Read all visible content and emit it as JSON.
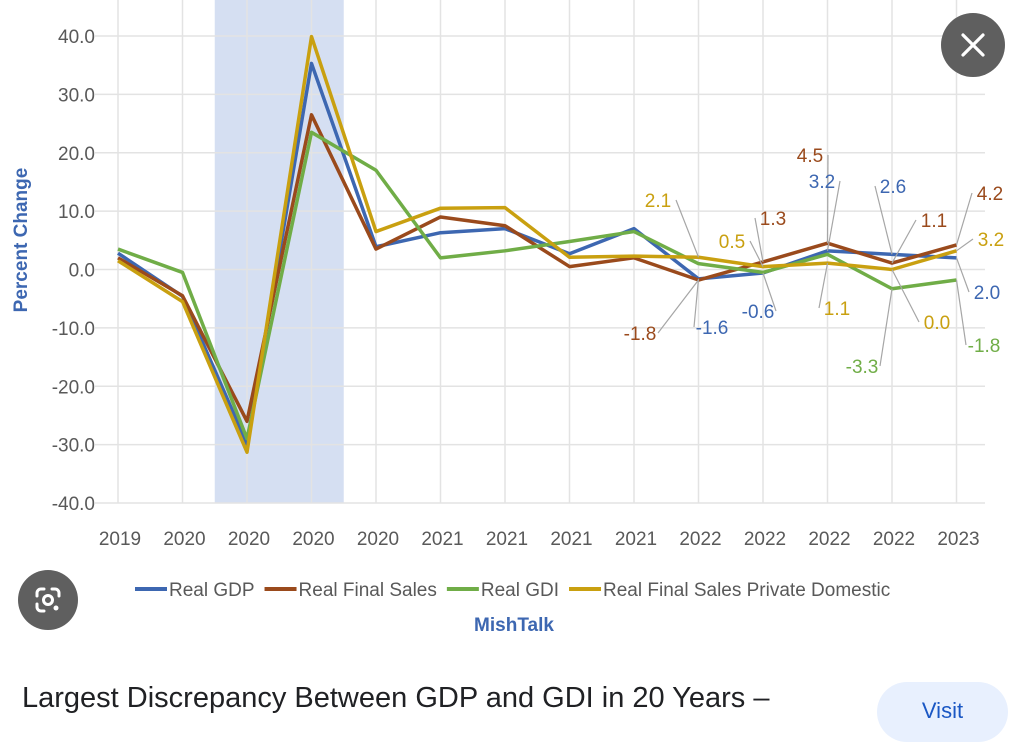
{
  "chart_data": {
    "type": "line",
    "ylabel": "Percent Change",
    "xlabel": "",
    "ylim": [
      -40,
      40
    ],
    "yticks": [
      "40.0",
      "30.0",
      "20.0",
      "10.0",
      "0.0",
      "-10.0",
      "-20.0",
      "-30.0",
      "-40.0"
    ],
    "categories": [
      "2019",
      "2020",
      "2020",
      "2020",
      "2020",
      "2021",
      "2021",
      "2021",
      "2021",
      "2022",
      "2022",
      "2022",
      "2022",
      "2023"
    ],
    "grid": true,
    "legend_placement": "bottom",
    "shaded_region": {
      "from_index": 1.5,
      "to_index": 3.5,
      "color": "#d5dff2"
    },
    "series": [
      {
        "name": "Real GDP",
        "color": "#3d67b1",
        "values": [
          2.8,
          -4.6,
          -29.9,
          35.3,
          3.9,
          6.3,
          7.0,
          2.7,
          7.0,
          -1.6,
          -0.6,
          3.2,
          2.6,
          2.0
        ]
      },
      {
        "name": "Real Final Sales",
        "color": "#9a4a1c",
        "values": [
          2.0,
          -4.5,
          -26.0,
          26.5,
          3.5,
          9.0,
          7.5,
          0.5,
          2.0,
          -1.8,
          1.3,
          4.5,
          1.1,
          4.2
        ]
      },
      {
        "name": "Real GDI",
        "color": "#70ad47",
        "values": [
          3.5,
          -0.5,
          -29.0,
          23.5,
          17.0,
          2.0,
          3.2,
          4.8,
          6.5,
          1.0,
          -0.5,
          2.6,
          -3.3,
          -1.8
        ]
      },
      {
        "name": "Real Final Sales Private Domestic",
        "color": "#c9a010",
        "values": [
          1.5,
          -5.5,
          -31.3,
          39.9,
          6.5,
          10.5,
          10.6,
          2.1,
          2.3,
          2.1,
          0.5,
          1.1,
          0.0,
          3.2
        ]
      }
    ],
    "data_labels": [
      {
        "series": 3,
        "index": 9,
        "text": "2.1"
      },
      {
        "series": 1,
        "index": 9,
        "text": "-1.8"
      },
      {
        "series": 0,
        "index": 9,
        "text": "-1.6"
      },
      {
        "series": 3,
        "index": 10,
        "text": "0.5"
      },
      {
        "series": 1,
        "index": 10,
        "text": "1.3"
      },
      {
        "series": 0,
        "index": 10,
        "text": "-0.6"
      },
      {
        "series": 1,
        "index": 11,
        "text": "4.5"
      },
      {
        "series": 0,
        "index": 11,
        "text": "3.2"
      },
      {
        "series": 3,
        "index": 11,
        "text": "1.1"
      },
      {
        "series": 0,
        "index": 12,
        "text": "2.6"
      },
      {
        "series": 1,
        "index": 12,
        "text": "1.1"
      },
      {
        "series": 3,
        "index": 12,
        "text": "0.0"
      },
      {
        "series": 2,
        "index": 12,
        "text": "-3.3"
      },
      {
        "series": 1,
        "index": 13,
        "text": "4.2"
      },
      {
        "series": 3,
        "index": 13,
        "text": "3.2"
      },
      {
        "series": 0,
        "index": 13,
        "text": "2.0"
      },
      {
        "series": 2,
        "index": 13,
        "text": "-1.8"
      }
    ],
    "source": "MishTalk"
  },
  "viewer": {
    "close_icon": "close-icon",
    "lens_icon": "google-lens-icon",
    "caption": "Largest Discrepancy Between GDP and GDI in 20 Years –",
    "visit_label": "Visit"
  }
}
